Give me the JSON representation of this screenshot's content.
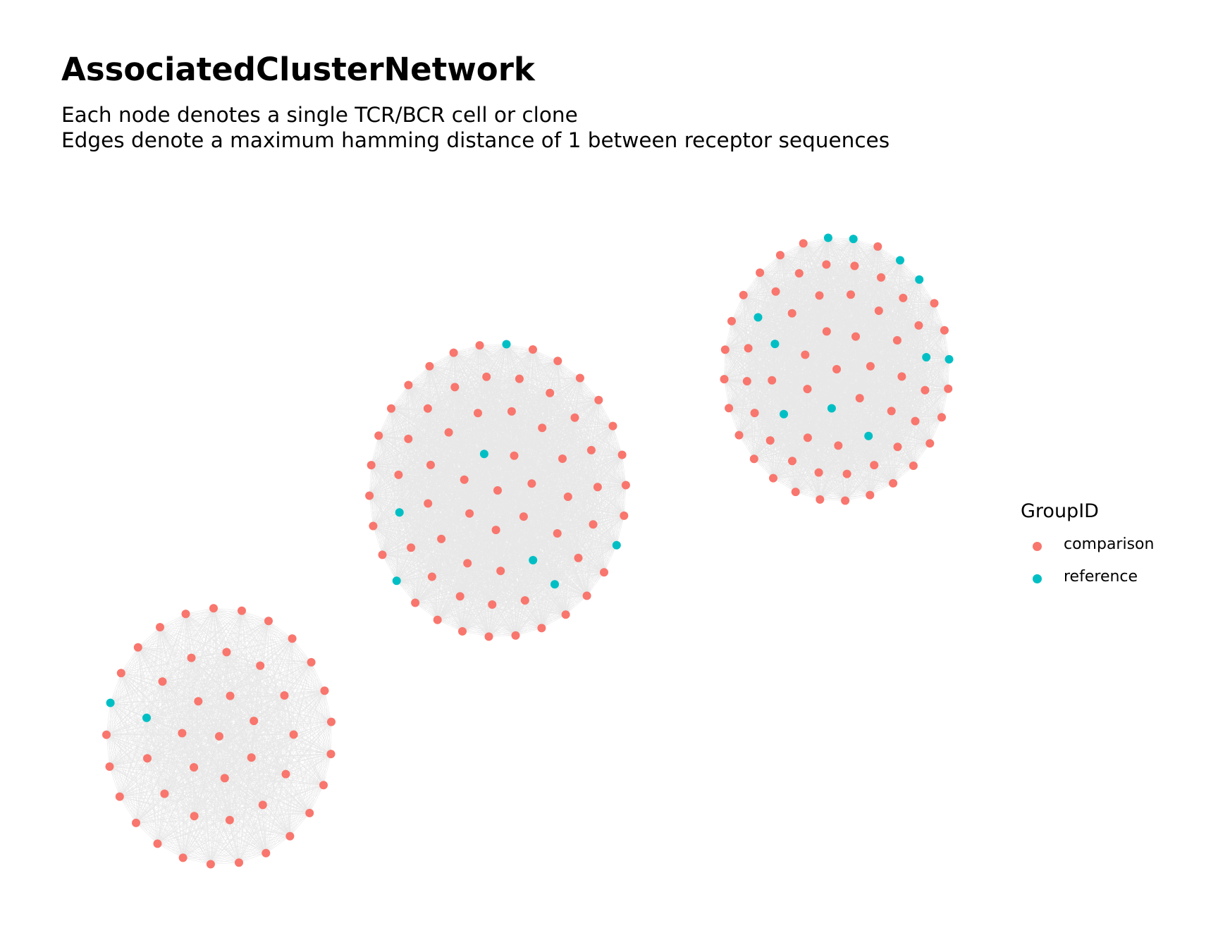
{
  "title": "AssociatedClusterNetwork",
  "subtitle_lines": [
    "Each node denotes a single TCR/BCR cell or clone",
    "Edges denote a maximum hamming distance of 1 between receptor sequences"
  ],
  "legend": {
    "title": "GroupID",
    "items": [
      {
        "label": "comparison",
        "color": "#F8766D"
      },
      {
        "label": "reference",
        "color": "#00BFC4"
      }
    ]
  },
  "colors": {
    "comparison": "#F8766D",
    "reference": "#00BFC4",
    "edge": "#BEBEBE"
  },
  "chart_data": {
    "type": "network",
    "layout": "concentric",
    "clusters": [
      {
        "rings": [
          {
            "n": 1,
            "reference": []
          },
          {
            "n": 7,
            "reference": []
          },
          {
            "n": 13,
            "reference": [
              10
            ]
          },
          {
            "n": 25,
            "reference": [
              20
            ]
          }
        ],
        "total_nodes": 46,
        "reference_nodes": 2
      },
      {
        "rings": [
          {
            "n": 1,
            "reference": []
          },
          {
            "n": 7,
            "reference": [
              0
            ]
          },
          {
            "n": 13,
            "reference": [
              5
            ]
          },
          {
            "n": 19,
            "reference": [
              6,
              12
            ]
          },
          {
            "n": 30,
            "reference": [
              2,
              11,
              21
            ]
          }
        ],
        "total_nodes": 70,
        "reference_nodes": 7
      },
      {
        "rings": [
          {
            "n": 1,
            "reference": []
          },
          {
            "n": 7,
            "reference": [
              4
            ]
          },
          {
            "n": 13,
            "reference": [
              4,
              7,
              9
            ]
          },
          {
            "n": 20,
            "reference": [
              4,
              16
            ]
          },
          {
            "n": 28,
            "reference": [
              1,
              2,
              4,
              5,
              8
            ]
          }
        ],
        "total_nodes": 69,
        "reference_nodes": 11
      }
    ]
  }
}
